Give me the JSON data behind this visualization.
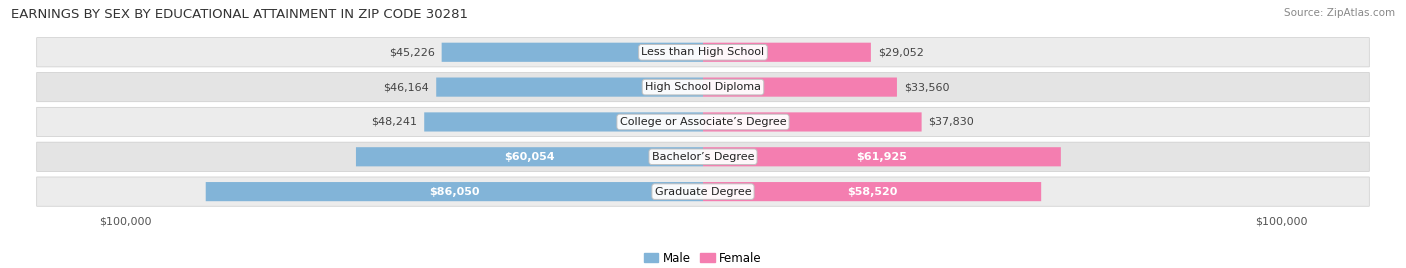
{
  "title": "EARNINGS BY SEX BY EDUCATIONAL ATTAINMENT IN ZIP CODE 30281",
  "source": "Source: ZipAtlas.com",
  "categories": [
    "Less than High School",
    "High School Diploma",
    "College or Associate’s Degree",
    "Bachelor’s Degree",
    "Graduate Degree"
  ],
  "male_values": [
    45226,
    46164,
    48241,
    60054,
    86050
  ],
  "female_values": [
    29052,
    33560,
    37830,
    61925,
    58520
  ],
  "male_color": "#82b4d8",
  "female_color": "#f47eb0",
  "max_value": 100000,
  "row_bg_color": "#e2e2e2",
  "row_alt_bg_color": "#e8e8e8",
  "title_fontsize": 9.5,
  "label_fontsize": 8.0,
  "tick_fontsize": 8.0,
  "legend_fontsize": 8.5,
  "background_color": "#ffffff",
  "male_threshold": 54000,
  "female_threshold": 54000
}
